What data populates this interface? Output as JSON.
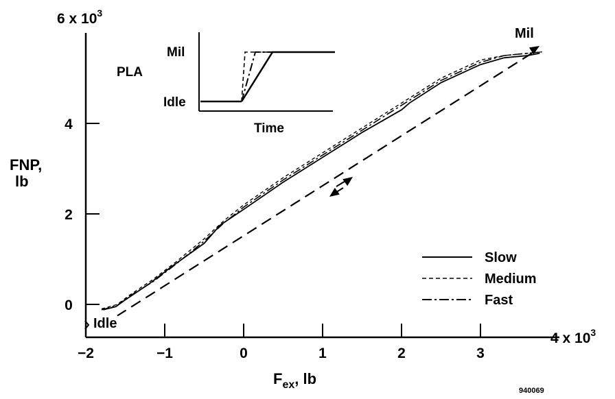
{
  "chart_data": {
    "type": "line",
    "xlabel_main": "F",
    "xlabel_sub": "ex",
    "xlabel_unit": ", lb",
    "ylabel_line1": "FNP,",
    "ylabel_line2": "lb",
    "x_multiplier": "4 x 10",
    "x_multiplier_exp": "3",
    "y_multiplier": "6 x 10",
    "y_multiplier_exp": "3",
    "xlim": [
      -2.2,
      4.2
    ],
    "ylim": [
      -0.7,
      6.0
    ],
    "x_ticks": [
      {
        "value": -2,
        "label": "−2"
      },
      {
        "value": -1,
        "label": "−1"
      },
      {
        "value": 0,
        "label": "0"
      },
      {
        "value": 1,
        "label": "1"
      },
      {
        "value": 2,
        "label": "2"
      },
      {
        "value": 3,
        "label": "3"
      }
    ],
    "y_ticks": [
      {
        "value": 0,
        "label": "0"
      },
      {
        "value": 2,
        "label": "2"
      },
      {
        "value": 4,
        "label": "4"
      }
    ],
    "series": [
      {
        "name": "Slow",
        "dash": "solid",
        "x": [
          -1.78,
          -1.62,
          -1.5,
          -1.2,
          -0.9,
          -0.5,
          -0.3,
          0.0,
          0.5,
          1.0,
          1.5,
          2.0,
          2.1,
          2.5,
          3.0,
          3.3,
          3.6,
          3.75
        ],
        "y": [
          -0.12,
          -0.05,
          0.1,
          0.45,
          0.85,
          1.35,
          1.75,
          2.1,
          2.7,
          3.25,
          3.8,
          4.3,
          4.45,
          4.9,
          5.3,
          5.45,
          5.5,
          5.55
        ]
      },
      {
        "name": "Medium",
        "dash": "short",
        "x": [
          -1.8,
          -1.6,
          -1.45,
          -1.15,
          -0.85,
          -0.5,
          -0.25,
          0.0,
          0.5,
          1.0,
          1.5,
          2.0,
          2.5,
          3.0,
          3.3,
          3.6,
          3.78
        ],
        "y": [
          -0.1,
          0.0,
          0.2,
          0.55,
          0.95,
          1.45,
          1.85,
          2.2,
          2.8,
          3.35,
          3.9,
          4.45,
          5.0,
          5.4,
          5.5,
          5.55,
          5.58
        ]
      },
      {
        "name": "Fast",
        "dash": "dashdot",
        "x": [
          -1.8,
          -1.6,
          -1.45,
          -1.15,
          -0.85,
          -0.5,
          -0.25,
          0.0,
          0.5,
          1.0,
          1.5,
          2.0,
          2.5,
          3.0,
          3.3,
          3.6,
          3.78
        ],
        "y": [
          -0.12,
          -0.02,
          0.18,
          0.5,
          0.9,
          1.4,
          1.8,
          2.15,
          2.75,
          3.3,
          3.85,
          4.4,
          4.95,
          5.35,
          5.5,
          5.55,
          5.58
        ]
      }
    ],
    "decel_path": {
      "x": [
        3.65,
        -1.6
      ],
      "y": [
        5.55,
        -0.25
      ]
    },
    "annotations": {
      "mil": "Mil",
      "idle": "Idle"
    },
    "inset": {
      "ylabel": "PLA",
      "xlabel": "Time",
      "y_high": "Mil",
      "y_low": "Idle"
    },
    "figure_id": "940069"
  }
}
